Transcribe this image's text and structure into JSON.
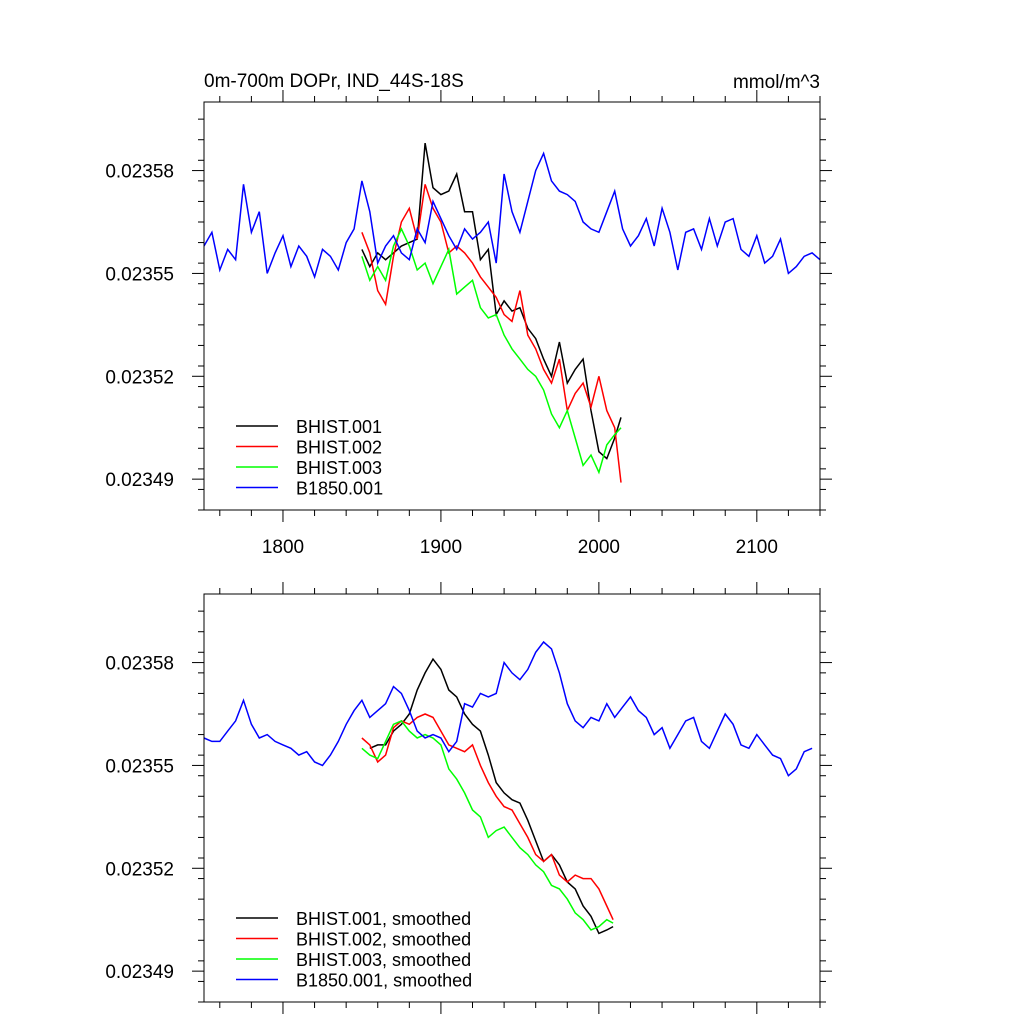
{
  "chart_data": [
    {
      "type": "line",
      "title": "0m-700m DOPr, IND_44S-18S",
      "units": "mmol/m^3",
      "xlim": [
        1750,
        2140
      ],
      "ylim": [
        0.023481,
        0.0236
      ],
      "x_ticks": [
        1800,
        1900,
        2000,
        2100
      ],
      "x_tick_labels": [
        "1800",
        "1900",
        "2000",
        "2100"
      ],
      "y_ticks": [
        0.02349,
        0.02352,
        0.02355,
        0.02358
      ],
      "y_tick_labels": [
        "0.02349",
        "0.02352",
        "0.02355",
        "0.02358"
      ],
      "legend_position": "bottom-left",
      "series": [
        {
          "name": "BHIST.001",
          "color": "#000000",
          "x": [
            1850,
            1855,
            1860,
            1865,
            1870,
            1875,
            1880,
            1885,
            1890,
            1895,
            1900,
            1905,
            1910,
            1915,
            1920,
            1925,
            1930,
            1935,
            1940,
            1945,
            1950,
            1955,
            1960,
            1965,
            1970,
            1975,
            1980,
            1985,
            1990,
            1995,
            2000,
            2005,
            2010,
            2014
          ],
          "y": [
            0.023557,
            0.023552,
            0.023556,
            0.023554,
            0.023556,
            0.023558,
            0.023559,
            0.02356,
            0.023588,
            0.023575,
            0.023573,
            0.023574,
            0.023579,
            0.023568,
            0.023568,
            0.023554,
            0.023557,
            0.023538,
            0.023542,
            0.023539,
            0.02354,
            0.023534,
            0.023531,
            0.023525,
            0.02352,
            0.02353,
            0.023518,
            0.023522,
            0.023525,
            0.02351,
            0.023498,
            0.023496,
            0.023502,
            0.023508
          ]
        },
        {
          "name": "BHIST.002",
          "color": "#ff0000",
          "x": [
            1850,
            1855,
            1860,
            1865,
            1870,
            1875,
            1880,
            1885,
            1890,
            1895,
            1900,
            1905,
            1910,
            1915,
            1920,
            1925,
            1930,
            1935,
            1940,
            1945,
            1950,
            1955,
            1960,
            1965,
            1970,
            1975,
            1980,
            1985,
            1990,
            1995,
            2000,
            2005,
            2010,
            2014
          ],
          "y": [
            0.023562,
            0.023556,
            0.023545,
            0.023541,
            0.023555,
            0.023565,
            0.023569,
            0.02356,
            0.023576,
            0.023569,
            0.023565,
            0.023556,
            0.023558,
            0.023556,
            0.023553,
            0.023549,
            0.023546,
            0.023543,
            0.023538,
            0.023536,
            0.023545,
            0.023532,
            0.023528,
            0.023522,
            0.023518,
            0.023525,
            0.02351,
            0.023515,
            0.023518,
            0.023511,
            0.02352,
            0.02351,
            0.023505,
            0.023489
          ]
        },
        {
          "name": "BHIST.003",
          "color": "#00ff00",
          "x": [
            1850,
            1855,
            1860,
            1865,
            1870,
            1875,
            1880,
            1885,
            1890,
            1895,
            1900,
            1905,
            1910,
            1915,
            1920,
            1925,
            1930,
            1935,
            1940,
            1945,
            1950,
            1955,
            1960,
            1965,
            1970,
            1975,
            1980,
            1985,
            1990,
            1995,
            2000,
            2005,
            2010,
            2014
          ],
          "y": [
            0.023555,
            0.023548,
            0.023552,
            0.023548,
            0.023558,
            0.023563,
            0.023558,
            0.023551,
            0.023553,
            0.023547,
            0.023552,
            0.023557,
            0.023544,
            0.023546,
            0.023548,
            0.02354,
            0.023537,
            0.023538,
            0.023532,
            0.023528,
            0.023525,
            0.023522,
            0.02352,
            0.023516,
            0.023509,
            0.023505,
            0.02351,
            0.023502,
            0.023494,
            0.023497,
            0.023492,
            0.0235,
            0.023503,
            0.023505
          ]
        },
        {
          "name": "B1850.001",
          "color": "#0000ff",
          "x": [
            1750,
            1755,
            1760,
            1765,
            1770,
            1775,
            1780,
            1785,
            1790,
            1795,
            1800,
            1805,
            1810,
            1815,
            1820,
            1825,
            1830,
            1835,
            1840,
            1845,
            1850,
            1855,
            1860,
            1865,
            1870,
            1875,
            1880,
            1885,
            1890,
            1895,
            1900,
            1905,
            1910,
            1915,
            1920,
            1925,
            1930,
            1935,
            1940,
            1945,
            1950,
            1955,
            1960,
            1965,
            1970,
            1975,
            1980,
            1985,
            1990,
            1995,
            2000,
            2005,
            2010,
            2015,
            2020,
            2025,
            2030,
            2035,
            2040,
            2045,
            2050,
            2055,
            2060,
            2065,
            2070,
            2075,
            2080,
            2085,
            2090,
            2095,
            2100,
            2105,
            2110,
            2115,
            2120,
            2125,
            2130,
            2135,
            2140
          ],
          "y": [
            0.023558,
            0.023562,
            0.023551,
            0.023557,
            0.023554,
            0.023576,
            0.023562,
            0.023568,
            0.02355,
            0.023556,
            0.023561,
            0.023552,
            0.023558,
            0.023555,
            0.023549,
            0.023557,
            0.023555,
            0.023551,
            0.023559,
            0.023563,
            0.023577,
            0.023568,
            0.023553,
            0.023558,
            0.023561,
            0.023556,
            0.023554,
            0.023563,
            0.023559,
            0.023571,
            0.023566,
            0.023561,
            0.023557,
            0.023563,
            0.02356,
            0.023562,
            0.023565,
            0.023553,
            0.023579,
            0.023568,
            0.023562,
            0.023571,
            0.02358,
            0.023585,
            0.023577,
            0.023574,
            0.023573,
            0.023571,
            0.023565,
            0.023563,
            0.023562,
            0.023568,
            0.023574,
            0.023563,
            0.023558,
            0.023561,
            0.023566,
            0.023558,
            0.023569,
            0.023562,
            0.023551,
            0.023562,
            0.023563,
            0.023557,
            0.023566,
            0.023558,
            0.023565,
            0.023566,
            0.023557,
            0.023555,
            0.023561,
            0.023553,
            0.023555,
            0.02356,
            0.02355,
            0.023552,
            0.023555,
            0.023556,
            0.023554
          ]
        }
      ]
    },
    {
      "type": "line",
      "title": "",
      "xlim": [
        1750,
        2140
      ],
      "ylim": [
        0.023481,
        0.0236
      ],
      "x_ticks": [
        1800,
        1900,
        2000,
        2100
      ],
      "y_ticks": [
        0.02349,
        0.02352,
        0.02355,
        0.02358
      ],
      "y_tick_labels": [
        "0.02349",
        "0.02352",
        "0.02355",
        "0.02358"
      ],
      "legend_position": "bottom-left",
      "series": [
        {
          "name": "BHIST.001, smoothed",
          "color": "#000000",
          "x": [
            1855,
            1860,
            1865,
            1870,
            1875,
            1880,
            1885,
            1890,
            1895,
            1900,
            1905,
            1910,
            1915,
            1920,
            1925,
            1930,
            1935,
            1940,
            1945,
            1950,
            1955,
            1960,
            1965,
            1970,
            1975,
            1980,
            1985,
            1990,
            1995,
            2000,
            2005,
            2009
          ],
          "y": [
            0.023555,
            0.023556,
            0.023556,
            0.02356,
            0.023562,
            0.023565,
            0.023572,
            0.023577,
            0.023581,
            0.023578,
            0.023572,
            0.02357,
            0.023565,
            0.023562,
            0.02356,
            0.023553,
            0.023545,
            0.023542,
            0.02354,
            0.023539,
            0.023534,
            0.023528,
            0.023522,
            0.023524,
            0.023521,
            0.023516,
            0.023514,
            0.023509,
            0.023506,
            0.023501,
            0.023502,
            0.023503
          ]
        },
        {
          "name": "BHIST.002, smoothed",
          "color": "#ff0000",
          "x": [
            1850,
            1855,
            1860,
            1865,
            1870,
            1875,
            1880,
            1885,
            1890,
            1895,
            1900,
            1905,
            1910,
            1915,
            1920,
            1925,
            1930,
            1935,
            1940,
            1945,
            1950,
            1955,
            1960,
            1965,
            1970,
            1975,
            1980,
            1985,
            1990,
            1995,
            2000,
            2005,
            2009
          ],
          "y": [
            0.023558,
            0.023556,
            0.023551,
            0.023553,
            0.023561,
            0.023563,
            0.023562,
            0.023564,
            0.023565,
            0.023564,
            0.02356,
            0.023556,
            0.023555,
            0.023554,
            0.023556,
            0.02355,
            0.023545,
            0.023541,
            0.023538,
            0.023537,
            0.023533,
            0.023529,
            0.023524,
            0.023522,
            0.023524,
            0.023518,
            0.023516,
            0.023518,
            0.023517,
            0.023517,
            0.023514,
            0.023509,
            0.023505
          ]
        },
        {
          "name": "BHIST.003, smoothed",
          "color": "#00ff00",
          "x": [
            1850,
            1855,
            1860,
            1865,
            1870,
            1875,
            1880,
            1885,
            1890,
            1895,
            1900,
            1905,
            1910,
            1915,
            1920,
            1925,
            1930,
            1935,
            1940,
            1945,
            1950,
            1955,
            1960,
            1965,
            1970,
            1975,
            1980,
            1985,
            1990,
            1995,
            2000,
            2005,
            2009
          ],
          "y": [
            0.023555,
            0.023553,
            0.023552,
            0.023557,
            0.023562,
            0.023563,
            0.02356,
            0.023558,
            0.023559,
            0.023558,
            0.023556,
            0.023549,
            0.023546,
            0.023542,
            0.023537,
            0.023535,
            0.023529,
            0.023531,
            0.023532,
            0.023529,
            0.023526,
            0.023524,
            0.023521,
            0.023519,
            0.023515,
            0.023514,
            0.023511,
            0.023507,
            0.023505,
            0.023502,
            0.023503,
            0.023505,
            0.023504
          ]
        },
        {
          "name": "B1850.001, smoothed",
          "color": "#0000ff",
          "x": [
            1750,
            1755,
            1760,
            1765,
            1770,
            1775,
            1780,
            1785,
            1790,
            1795,
            1800,
            1805,
            1810,
            1815,
            1820,
            1825,
            1830,
            1835,
            1840,
            1845,
            1850,
            1855,
            1860,
            1865,
            1870,
            1875,
            1880,
            1885,
            1890,
            1895,
            1900,
            1905,
            1910,
            1915,
            1920,
            1925,
            1930,
            1935,
            1940,
            1945,
            1950,
            1955,
            1960,
            1965,
            1970,
            1975,
            1980,
            1985,
            1990,
            1995,
            2000,
            2005,
            2010,
            2015,
            2020,
            2025,
            2030,
            2035,
            2040,
            2045,
            2050,
            2055,
            2060,
            2065,
            2070,
            2075,
            2080,
            2085,
            2090,
            2095,
            2100,
            2105,
            2110,
            2115,
            2120,
            2125,
            2130,
            2135
          ],
          "y": [
            0.023558,
            0.023557,
            0.023557,
            0.02356,
            0.023563,
            0.023569,
            0.023562,
            0.023558,
            0.023559,
            0.023557,
            0.023556,
            0.023555,
            0.023553,
            0.023554,
            0.023551,
            0.02355,
            0.023553,
            0.023557,
            0.023562,
            0.023566,
            0.023569,
            0.023564,
            0.023566,
            0.023568,
            0.023573,
            0.023571,
            0.023566,
            0.02356,
            0.023558,
            0.023559,
            0.023558,
            0.023554,
            0.023557,
            0.023568,
            0.023567,
            0.023571,
            0.02357,
            0.023571,
            0.02358,
            0.023577,
            0.023575,
            0.023578,
            0.023583,
            0.023586,
            0.023584,
            0.023577,
            0.023568,
            0.023563,
            0.023561,
            0.023564,
            0.023563,
            0.023568,
            0.023564,
            0.023567,
            0.02357,
            0.023566,
            0.023564,
            0.023559,
            0.023561,
            0.023555,
            0.023559,
            0.023563,
            0.023564,
            0.023557,
            0.023555,
            0.02356,
            0.023565,
            0.023562,
            0.023556,
            0.023555,
            0.023559,
            0.023556,
            0.023553,
            0.023552,
            0.023547,
            0.023549,
            0.023554,
            0.023555
          ]
        }
      ]
    }
  ]
}
